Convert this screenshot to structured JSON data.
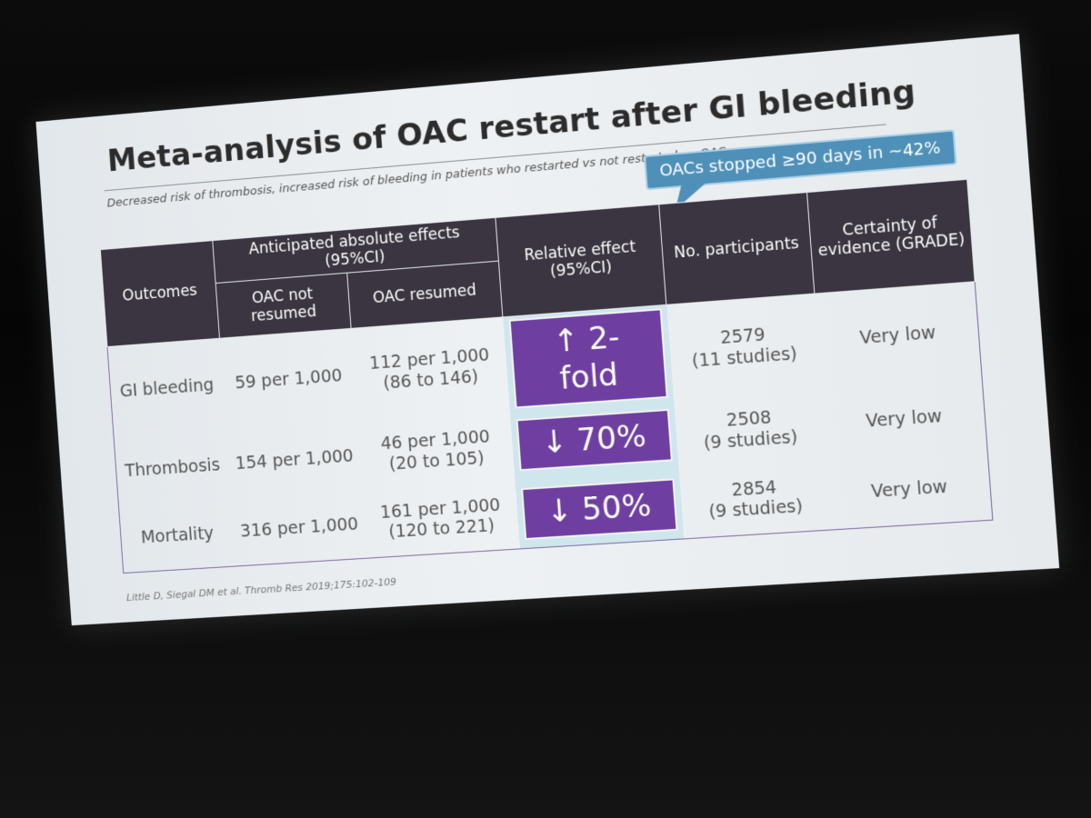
{
  "slide": {
    "title": "Meta-analysis of OAC restart after GI bleeding",
    "subtitle": "Decreased risk of thrombosis, increased risk of bleeding in patients who restarted vs not restarted on OAC",
    "callout": "OACs stopped ≥90 days in ~42%",
    "citation": "Little D, Siegal DM et al. Thromb Res 2019;175:102-109"
  },
  "table": {
    "headers": {
      "outcomes": "Outcomes",
      "anticipated": "Anticipated absolute effects (95%CI)",
      "oac_not_resumed": "OAC not resumed",
      "oac_resumed": "OAC resumed",
      "relative_effect": "Relative effect (95%CI)",
      "participants": "No. participants",
      "certainty": "Certainty of evidence (GRADE)"
    },
    "rows": [
      {
        "outcome": "GI bleeding",
        "not_resumed": "59 per 1,000",
        "resumed": "112 per 1,000",
        "resumed_ci": "(86 to 146)",
        "relative": "↑ 2-fold",
        "participants": "2579",
        "studies": "(11 studies)",
        "certainty": "Very low"
      },
      {
        "outcome": "Thrombosis",
        "not_resumed": "154 per 1,000",
        "resumed": "46 per 1,000",
        "resumed_ci": "(20 to 105)",
        "relative": "↓ 70%",
        "participants": "2508",
        "studies": "(9 studies)",
        "certainty": "Very low"
      },
      {
        "outcome": "Mortality",
        "not_resumed": "316 per 1,000",
        "resumed": "161 per 1,000",
        "resumed_ci": "(120 to 221)",
        "relative": "↓ 50%",
        "participants": "2854",
        "studies": "(9 studies)",
        "certainty": "Very low"
      }
    ]
  },
  "colors": {
    "header_bg": "#3a3540",
    "relative_box": "#6e3fa0",
    "relative_cell_bg": "#cfe6ec",
    "callout_bg": "#4f90b8"
  }
}
